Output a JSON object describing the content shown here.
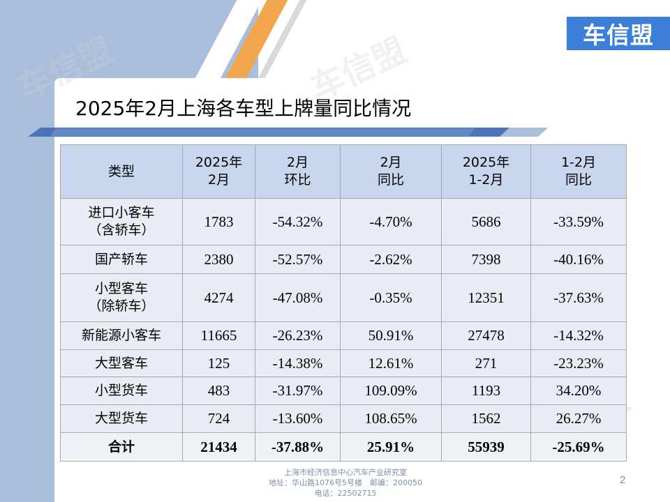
{
  "logo": {
    "text": "车信盟",
    "color": "#3c7fd9"
  },
  "watermark": "车信盟",
  "title": "2025年2月上海各车型上牌量同比情况",
  "table": {
    "headers": [
      {
        "line1": "类型",
        "line2": ""
      },
      {
        "line1": "2025年",
        "line2": "2月"
      },
      {
        "line1": "2月",
        "line2": "环比"
      },
      {
        "line1": "2月",
        "line2": "同比"
      },
      {
        "line1": "2025年",
        "line2": "1-2月"
      },
      {
        "line1": "1-2月",
        "line2": "同比"
      }
    ],
    "rows": [
      {
        "type_line1": "进口小客车",
        "type_line2": "（含轿车）",
        "feb": "1783",
        "mom": "-54.32%",
        "yoy": "-4.70%",
        "ytd": "5686",
        "ytd_yoy": "-33.59%"
      },
      {
        "type_line1": "国产轿车",
        "type_line2": "",
        "feb": "2380",
        "mom": "-52.57%",
        "yoy": "-2.62%",
        "ytd": "7398",
        "ytd_yoy": "-40.16%"
      },
      {
        "type_line1": "小型客车",
        "type_line2": "（除轿车）",
        "feb": "4274",
        "mom": "-47.08%",
        "yoy": "-0.35%",
        "ytd": "12351",
        "ytd_yoy": "-37.63%"
      },
      {
        "type_line1": "新能源小客车",
        "type_line2": "",
        "feb": "11665",
        "mom": "-26.23%",
        "yoy": "50.91%",
        "ytd": "27478",
        "ytd_yoy": "-14.32%"
      },
      {
        "type_line1": "大型客车",
        "type_line2": "",
        "feb": "125",
        "mom": "-14.38%",
        "yoy": "12.61%",
        "ytd": "271",
        "ytd_yoy": "-23.23%"
      },
      {
        "type_line1": "小型货车",
        "type_line2": "",
        "feb": "483",
        "mom": "-31.97%",
        "yoy": "109.09%",
        "ytd": "1193",
        "ytd_yoy": "34.20%"
      },
      {
        "type_line1": "大型货车",
        "type_line2": "",
        "feb": "724",
        "mom": "-13.60%",
        "yoy": "108.65%",
        "ytd": "1562",
        "ytd_yoy": "26.27%"
      }
    ],
    "total": {
      "type": "合计",
      "feb": "21434",
      "mom": "-37.88%",
      "yoy": "25.91%",
      "ytd": "55939",
      "ytd_yoy": "-25.69%"
    }
  },
  "footer": {
    "line1": "上海市经济信息中心汽车产业研究室",
    "line2": "地址：华山路1076号5号楼　邮编：200050",
    "line3": "电话：22502715"
  },
  "page_number": "2"
}
